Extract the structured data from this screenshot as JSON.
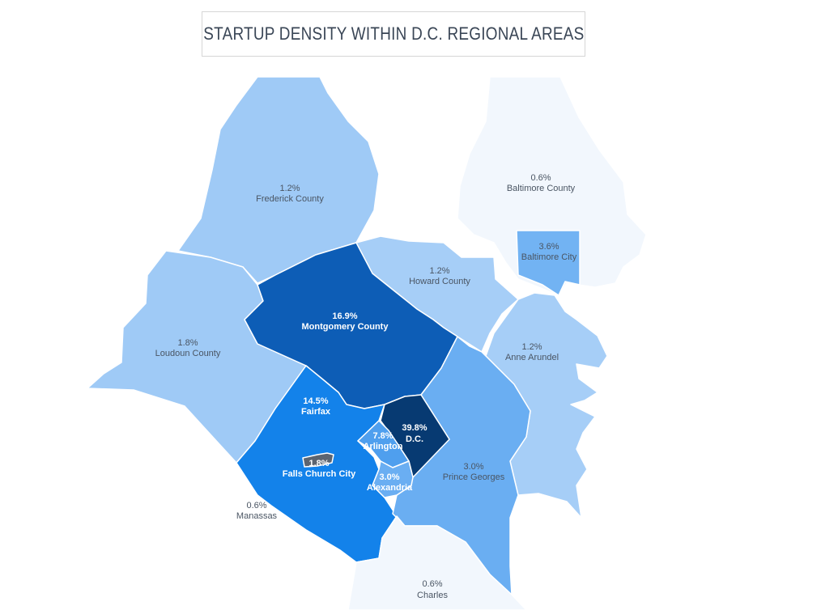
{
  "title": "STARTUP DENSITY WITHIN D.C. REGIONAL AREAS",
  "regions": {
    "baltimore_county": {
      "pct": "0.6%",
      "name": "Baltimore County",
      "color": "#f2f7fd"
    },
    "frederick_county": {
      "pct": "1.2%",
      "name": "Frederick County",
      "color": "#9fcaf6"
    },
    "loudoun_county": {
      "pct": "1.8%",
      "name": "Loudoun County",
      "color": "#9fcaf6"
    },
    "howard_county": {
      "pct": "1.2%",
      "name": "Howard County",
      "color": "#a6cef7"
    },
    "baltimore_city": {
      "pct": "3.6%",
      "name": "Baltimore City",
      "color": "#72b3f3"
    },
    "anne_arundel": {
      "pct": "1.2%",
      "name": "Anne Arundel",
      "color": "#a6cef7"
    },
    "montgomery_county": {
      "pct": "16.9%",
      "name": "Montgomery County",
      "color": "#0d5db6"
    },
    "fairfax": {
      "pct": "14.5%",
      "name": "Fairfax",
      "color": "#1382ea"
    },
    "prince_georges": {
      "pct": "3.0%",
      "name": "Prince Georges",
      "color": "#6aaef2"
    },
    "dc": {
      "pct": "39.8%",
      "name": "D.C.",
      "color": "#073a72"
    },
    "arlington": {
      "pct": "7.8%",
      "name": "Arlington",
      "color": "#4f9fee"
    },
    "alexandria": {
      "pct": "3.0%",
      "name": "Alexandria",
      "color": "#6aaef2"
    },
    "falls_church_city": {
      "pct": "1.8%",
      "name": "Falls Church City",
      "color": "#5c6470"
    },
    "manassas": {
      "pct": "0.6%",
      "name": "Manassas",
      "color": "#f2f7fd"
    },
    "charles": {
      "pct": "0.6%",
      "name": "Charles",
      "color": "#f2f7fd"
    }
  }
}
